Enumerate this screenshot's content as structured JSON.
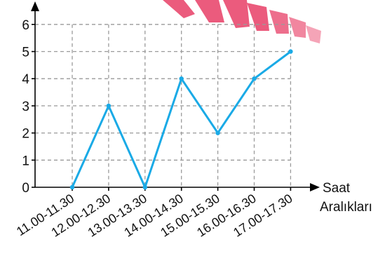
{
  "chart_data": {
    "type": "line",
    "categories": [
      "11.00-11.30",
      "12.00-12.30",
      "13.00-13.30",
      "14.00-14.30",
      "15.00-15.30",
      "16.00-16.30",
      "17.00-17.30"
    ],
    "series": [
      {
        "values": [
          0,
          3,
          0,
          4,
          2,
          4,
          5
        ]
      }
    ],
    "xlabel_line1": "Saat",
    "xlabel_line2": "Aralıkları",
    "ylabel": "",
    "ylim": [
      0,
      6
    ],
    "yticks": [
      "0",
      "1",
      "2",
      "3",
      "4",
      "5",
      "6"
    ],
    "grid": true,
    "colors": {
      "series": "#1aaae6",
      "axis": "#000000",
      "grid": "#9a9a9a",
      "watermark": "#e7426b"
    }
  }
}
